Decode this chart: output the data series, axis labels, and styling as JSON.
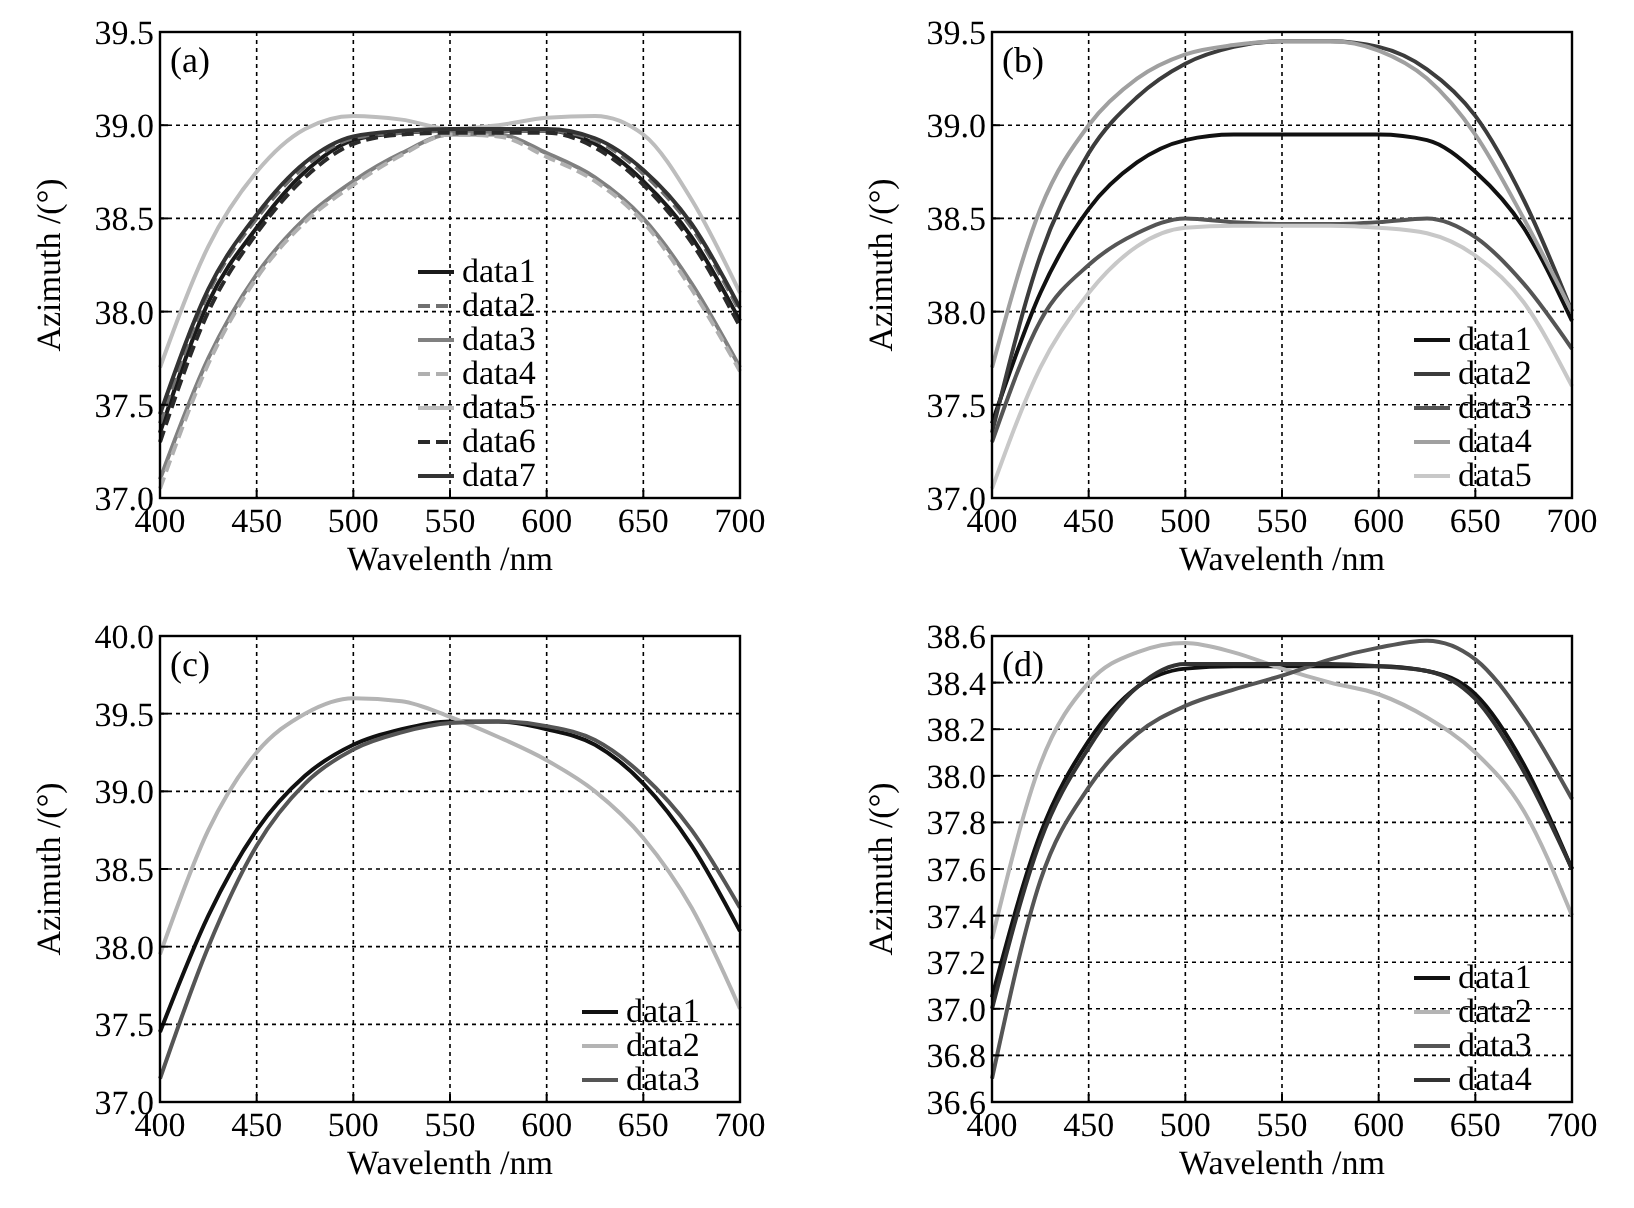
{
  "chart_data": [
    {
      "type": "line",
      "annotations": [
        "(a)"
      ],
      "xlabel": "Wavelenth /nm",
      "ylabel": "Azimuth /(°)",
      "x": [
        400,
        425,
        450,
        475,
        500,
        525,
        550,
        575,
        600,
        625,
        650,
        675,
        700
      ],
      "xlim": [
        400,
        700
      ],
      "xticks": [
        400,
        450,
        500,
        550,
        600,
        650,
        700
      ],
      "ylim": [
        37,
        39.5
      ],
      "yticks": [
        {
          "value": 37,
          "label": "37.0"
        },
        {
          "value": 37.5,
          "label": "37.5"
        },
        {
          "value": 38,
          "label": "38.0"
        },
        {
          "value": 38.5,
          "label": "38.5"
        },
        {
          "value": 39,
          "label": "39.0"
        },
        {
          "value": 39.5,
          "label": "39.5"
        }
      ],
      "grid": true,
      "legend": "bottom",
      "series": [
        {
          "name": "data1",
          "color": "#1a1a1a",
          "values": [
            37.35,
            38.05,
            38.45,
            38.75,
            38.92,
            38.96,
            38.97,
            38.97,
            38.97,
            38.9,
            38.7,
            38.4,
            37.95
          ]
        },
        {
          "name": "data2",
          "color": "#707070",
          "line_style": "dashed",
          "values": [
            37.4,
            38.1,
            38.5,
            38.78,
            38.93,
            38.96,
            38.97,
            38.97,
            38.97,
            38.92,
            38.74,
            38.45,
            38.0
          ]
        },
        {
          "name": "data3",
          "color": "#808080",
          "values": [
            37.1,
            37.75,
            38.2,
            38.5,
            38.7,
            38.85,
            38.95,
            38.95,
            38.85,
            38.72,
            38.5,
            38.15,
            37.7
          ]
        },
        {
          "name": "data4",
          "color": "#b0b0b0",
          "line_style": "dashed",
          "values": [
            37.05,
            37.72,
            38.18,
            38.48,
            38.68,
            38.84,
            38.95,
            38.94,
            38.83,
            38.7,
            38.48,
            38.12,
            37.68
          ]
        },
        {
          "name": "data5",
          "color": "#bdbdbd",
          "values": [
            37.7,
            38.35,
            38.75,
            38.98,
            39.05,
            39.03,
            38.98,
            39.0,
            39.04,
            39.05,
            38.95,
            38.6,
            38.1
          ]
        },
        {
          "name": "data6",
          "color": "#2a2a2a",
          "line_style": "dashed",
          "values": [
            37.3,
            38.0,
            38.42,
            38.72,
            38.9,
            38.95,
            38.96,
            38.96,
            38.96,
            38.88,
            38.68,
            38.37,
            37.92
          ]
        },
        {
          "name": "data7",
          "color": "#333333",
          "values": [
            37.45,
            38.12,
            38.52,
            38.8,
            38.94,
            38.97,
            38.98,
            38.98,
            38.98,
            38.93,
            38.76,
            38.47,
            38.02
          ]
        }
      ]
    },
    {
      "type": "line",
      "annotations": [
        "(b)"
      ],
      "xlabel": "Wavelenth /nm",
      "ylabel": "Azimuth /(°)",
      "x": [
        400,
        425,
        450,
        475,
        500,
        525,
        550,
        575,
        600,
        625,
        650,
        675,
        700
      ],
      "xlim": [
        400,
        700
      ],
      "xticks": [
        400,
        450,
        500,
        550,
        600,
        650,
        700
      ],
      "ylim": [
        37,
        39.5
      ],
      "yticks": [
        {
          "value": 37,
          "label": "37.0"
        },
        {
          "value": 37.5,
          "label": "37.5"
        },
        {
          "value": 38,
          "label": "38.0"
        },
        {
          "value": 38.5,
          "label": "38.5"
        },
        {
          "value": 39,
          "label": "39.0"
        },
        {
          "value": 39.5,
          "label": "39.5"
        }
      ],
      "grid": true,
      "legend": "bottom right",
      "series": [
        {
          "name": "data1",
          "color": "#111111",
          "values": [
            37.4,
            38.1,
            38.55,
            38.8,
            38.92,
            38.95,
            38.95,
            38.95,
            38.95,
            38.92,
            38.75,
            38.45,
            37.95
          ]
        },
        {
          "name": "data2",
          "color": "#3c3c3c",
          "values": [
            37.35,
            38.3,
            38.85,
            39.15,
            39.33,
            39.42,
            39.45,
            39.45,
            39.42,
            39.3,
            39.05,
            38.6,
            38.0
          ]
        },
        {
          "name": "data3",
          "color": "#555555",
          "values": [
            37.3,
            37.95,
            38.25,
            38.42,
            38.5,
            38.48,
            38.47,
            38.47,
            38.48,
            38.5,
            38.4,
            38.15,
            37.8
          ]
        },
        {
          "name": "data4",
          "color": "#a0a0a0",
          "values": [
            37.7,
            38.55,
            39.0,
            39.25,
            39.38,
            39.43,
            39.45,
            39.45,
            39.4,
            39.25,
            38.95,
            38.5,
            38.0
          ]
        },
        {
          "name": "data5",
          "color": "#c8c8c8",
          "values": [
            37.05,
            37.7,
            38.1,
            38.35,
            38.45,
            38.46,
            38.46,
            38.46,
            38.45,
            38.42,
            38.3,
            38.05,
            37.6
          ]
        }
      ]
    },
    {
      "type": "line",
      "annotations": [
        "(c)"
      ],
      "xlabel": "Wavelenth /nm",
      "ylabel": "Azimuth /(°)",
      "x": [
        400,
        425,
        450,
        475,
        500,
        525,
        550,
        575,
        600,
        625,
        650,
        675,
        700
      ],
      "xlim": [
        400,
        700
      ],
      "xticks": [
        400,
        450,
        500,
        550,
        600,
        650,
        700
      ],
      "ylim": [
        37,
        40
      ],
      "yticks": [
        {
          "value": 37,
          "label": "37.0"
        },
        {
          "value": 37.5,
          "label": "37.5"
        },
        {
          "value": 38,
          "label": "38.0"
        },
        {
          "value": 38.5,
          "label": "38.5"
        },
        {
          "value": 39,
          "label": "39.0"
        },
        {
          "value": 39.5,
          "label": "39.5"
        },
        {
          "value": 40,
          "label": "40.0"
        }
      ],
      "grid": true,
      "legend": "bottom right",
      "series": [
        {
          "name": "data1",
          "color": "#111111",
          "values": [
            37.45,
            38.2,
            38.75,
            39.1,
            39.3,
            39.4,
            39.45,
            39.45,
            39.4,
            39.3,
            39.05,
            38.65,
            38.1
          ]
        },
        {
          "name": "data2",
          "color": "#b4b4b4",
          "values": [
            37.95,
            38.75,
            39.25,
            39.5,
            39.6,
            39.58,
            39.48,
            39.35,
            39.2,
            39.0,
            38.7,
            38.25,
            37.6
          ]
        },
        {
          "name": "data3",
          "color": "#555555",
          "values": [
            37.15,
            38.0,
            38.65,
            39.05,
            39.27,
            39.38,
            39.44,
            39.45,
            39.42,
            39.33,
            39.1,
            38.75,
            38.25
          ]
        }
      ]
    },
    {
      "type": "line",
      "annotations": [
        "(d)"
      ],
      "xlabel": "Wavelenth /nm",
      "ylabel": "Azimuth /(°)",
      "x": [
        400,
        425,
        450,
        475,
        500,
        525,
        550,
        575,
        600,
        625,
        650,
        675,
        700
      ],
      "xlim": [
        400,
        700
      ],
      "xticks": [
        400,
        450,
        500,
        550,
        600,
        650,
        700
      ],
      "ylim": [
        36.6,
        38.6
      ],
      "yticks": [
        36.6,
        36.8,
        {
          "value": 37,
          "label": "37.0"
        },
        37.2,
        37.4,
        37.6,
        37.8,
        {
          "value": 38,
          "label": "38.0"
        },
        38.2,
        38.4,
        38.6
      ],
      "grid": true,
      "legend": "bottom right",
      "series": [
        {
          "name": "data1",
          "color": "#111111",
          "values": [
            37.05,
            37.75,
            38.15,
            38.38,
            38.46,
            38.47,
            38.47,
            38.47,
            38.47,
            38.45,
            38.35,
            38.05,
            37.6
          ]
        },
        {
          "name": "data2",
          "color": "#b4b4b4",
          "values": [
            37.3,
            38.05,
            38.4,
            38.53,
            38.57,
            38.53,
            38.46,
            38.4,
            38.35,
            38.25,
            38.1,
            37.85,
            37.4
          ]
        },
        {
          "name": "data3",
          "color": "#555555",
          "values": [
            36.7,
            37.55,
            37.95,
            38.18,
            38.3,
            38.37,
            38.43,
            38.5,
            38.55,
            38.58,
            38.5,
            38.25,
            37.9
          ]
        },
        {
          "name": "data4",
          "color": "#333333",
          "values": [
            37.0,
            37.72,
            38.12,
            38.38,
            38.48,
            38.48,
            38.48,
            38.48,
            38.47,
            38.45,
            38.33,
            38.02,
            37.6
          ]
        }
      ]
    }
  ]
}
